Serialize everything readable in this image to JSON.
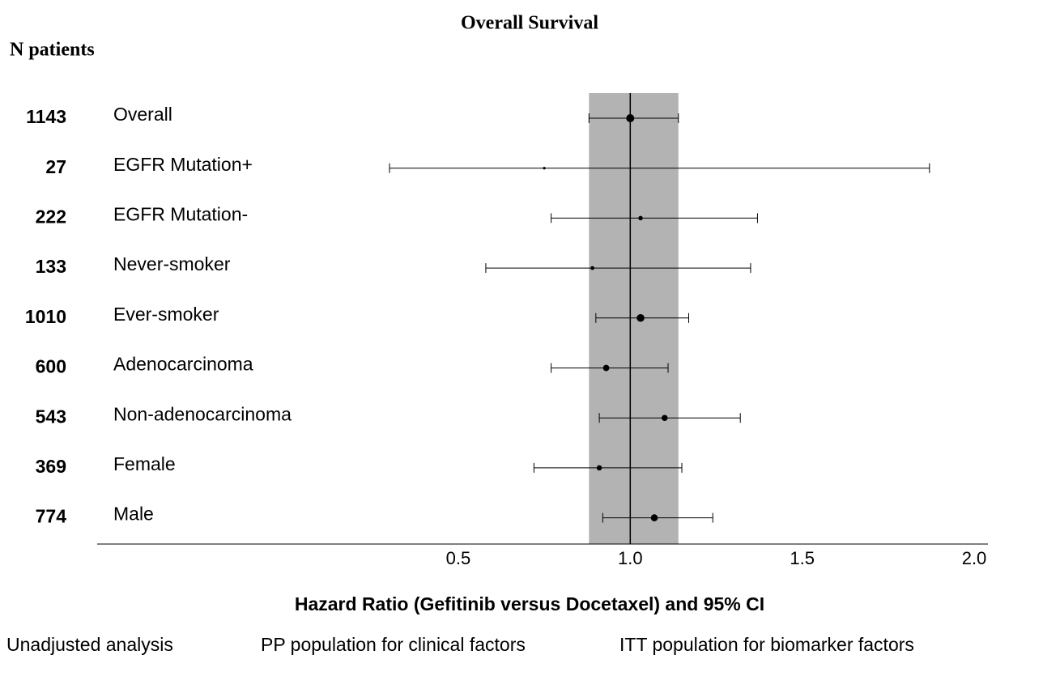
{
  "chart_data": {
    "type": "forest",
    "title": "Overall Survival",
    "column_header": "N patients",
    "x_label": "Hazard Ratio (Gefitinib versus Docetaxel) and 95% CI",
    "notes": [
      "Unadjusted analysis",
      "PP population for clinical factors",
      "ITT population for biomarker factors"
    ],
    "rows": [
      {
        "n": 1143,
        "label": "Overall",
        "hr": 1.0,
        "lower": 0.88,
        "upper": 1.14
      },
      {
        "n": 27,
        "label": "EGFR Mutation+",
        "hr": 0.75,
        "lower": 0.3,
        "upper": 1.87
      },
      {
        "n": 222,
        "label": "EGFR Mutation-",
        "hr": 1.03,
        "lower": 0.77,
        "upper": 1.37
      },
      {
        "n": 133,
        "label": "Never-smoker",
        "hr": 0.89,
        "lower": 0.58,
        "upper": 1.35
      },
      {
        "n": 1010,
        "label": "Ever-smoker",
        "hr": 1.03,
        "lower": 0.9,
        "upper": 1.17
      },
      {
        "n": 600,
        "label": "Adenocarcinoma",
        "hr": 0.93,
        "lower": 0.77,
        "upper": 1.11
      },
      {
        "n": 543,
        "label": "Non-adenocarcinoma",
        "hr": 1.1,
        "lower": 0.91,
        "upper": 1.32
      },
      {
        "n": 369,
        "label": "Female",
        "hr": 0.91,
        "lower": 0.72,
        "upper": 1.15
      },
      {
        "n": 774,
        "label": "Male",
        "hr": 1.07,
        "lower": 0.92,
        "upper": 1.24
      }
    ],
    "reference_line": 1.0,
    "reference_band": [
      0.88,
      1.14
    ],
    "band_color": "#b3b3b3",
    "xlim": [
      -0.55,
      2.04
    ],
    "xticks": [
      {
        "value": 0.5,
        "label": "0.5"
      },
      {
        "value": 1.0,
        "label": "1.0"
      },
      {
        "value": 1.5,
        "label": "1.5"
      },
      {
        "value": 2.0,
        "label": "2.0"
      }
    ]
  }
}
